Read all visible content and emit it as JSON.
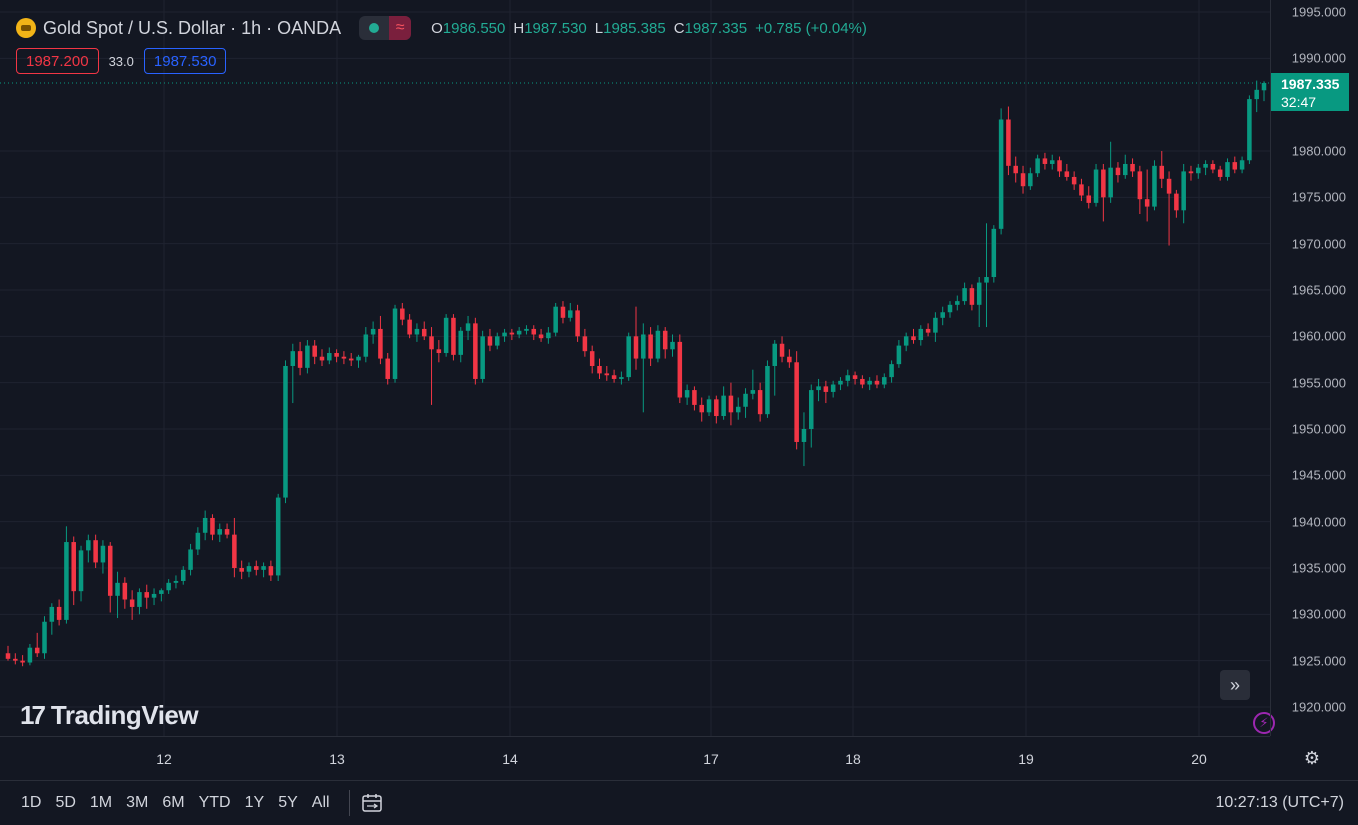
{
  "header": {
    "symbol_title": "Gold Spot / U.S. Dollar · 1h · OANDA",
    "ohlc": {
      "o_label": "O",
      "o_value": "1986.550",
      "h_label": "H",
      "h_value": "1987.530",
      "l_label": "L",
      "l_value": "1985.385",
      "c_label": "C",
      "c_value": "1987.335",
      "change": "+0.785 (+0.04%)"
    },
    "bid": "1987.200",
    "spread": "33.0",
    "ask": "1987.530"
  },
  "current_price": {
    "price": "1987.335",
    "countdown": "32:47"
  },
  "price_axis": {
    "ticks": [
      "1995.000",
      "1990.000",
      "1980.000",
      "1975.000",
      "1970.000",
      "1965.000",
      "1960.000",
      "1955.000",
      "1950.000",
      "1945.000",
      "1940.000",
      "1935.000",
      "1930.000",
      "1925.000",
      "1920.000"
    ]
  },
  "time_axis": {
    "labels": [
      "12",
      "13",
      "14",
      "17",
      "18",
      "19",
      "20"
    ]
  },
  "branding": {
    "logo_text": "TradingView"
  },
  "bottom_bar": {
    "ranges": [
      "1D",
      "5D",
      "1M",
      "3M",
      "6M",
      "YTD",
      "1Y",
      "5Y",
      "All"
    ],
    "clock": "10:27:13 (UTC+7)"
  },
  "colors": {
    "up": "#089981",
    "down": "#f23645",
    "background": "#131722",
    "grid": "#1f2330"
  },
  "icons": {
    "fast_forward": "double-chevron-right-icon",
    "lightning": "lightning-icon",
    "settings": "gear-icon",
    "calendar": "calendar-range-icon"
  },
  "chart_data": {
    "type": "candlestick",
    "symbol": "Gold Spot / U.S. Dollar",
    "interval": "1h",
    "ylim": [
      1917,
      1996
    ],
    "x_labels": [
      "12",
      "13",
      "14",
      "17",
      "18",
      "19",
      "20"
    ],
    "candles": [
      {
        "o": 1925.8,
        "h": 1926.6,
        "l": 1925.0,
        "c": 1925.2
      },
      {
        "o": 1925.2,
        "h": 1925.8,
        "l": 1924.6,
        "c": 1925.0
      },
      {
        "o": 1925.0,
        "h": 1925.6,
        "l": 1924.4,
        "c": 1924.8
      },
      {
        "o": 1924.8,
        "h": 1926.8,
        "l": 1924.5,
        "c": 1926.4
      },
      {
        "o": 1926.4,
        "h": 1928.0,
        "l": 1925.4,
        "c": 1925.8
      },
      {
        "o": 1925.8,
        "h": 1929.8,
        "l": 1925.2,
        "c": 1929.2
      },
      {
        "o": 1929.2,
        "h": 1931.2,
        "l": 1927.8,
        "c": 1930.8
      },
      {
        "o": 1930.8,
        "h": 1931.6,
        "l": 1928.8,
        "c": 1929.4
      },
      {
        "o": 1929.4,
        "h": 1939.5,
        "l": 1929.0,
        "c": 1937.8
      },
      {
        "o": 1937.8,
        "h": 1938.4,
        "l": 1931.0,
        "c": 1932.5
      },
      {
        "o": 1932.5,
        "h": 1937.4,
        "l": 1931.4,
        "c": 1936.9
      },
      {
        "o": 1936.9,
        "h": 1938.6,
        "l": 1935.6,
        "c": 1938.0
      },
      {
        "o": 1938.0,
        "h": 1938.6,
        "l": 1935.0,
        "c": 1935.6
      },
      {
        "o": 1935.6,
        "h": 1938.0,
        "l": 1934.4,
        "c": 1937.4
      },
      {
        "o": 1937.4,
        "h": 1937.8,
        "l": 1930.2,
        "c": 1932.0
      },
      {
        "o": 1932.0,
        "h": 1934.6,
        "l": 1929.6,
        "c": 1933.4
      },
      {
        "o": 1933.4,
        "h": 1934.0,
        "l": 1930.6,
        "c": 1931.6
      },
      {
        "o": 1931.6,
        "h": 1932.6,
        "l": 1929.4,
        "c": 1930.8
      },
      {
        "o": 1930.8,
        "h": 1932.8,
        "l": 1930.0,
        "c": 1932.4
      },
      {
        "o": 1932.4,
        "h": 1933.2,
        "l": 1930.6,
        "c": 1931.8
      },
      {
        "o": 1931.8,
        "h": 1932.8,
        "l": 1931.0,
        "c": 1932.2
      },
      {
        "o": 1932.2,
        "h": 1932.8,
        "l": 1931.4,
        "c": 1932.6
      },
      {
        "o": 1932.6,
        "h": 1933.8,
        "l": 1932.2,
        "c": 1933.4
      },
      {
        "o": 1933.4,
        "h": 1934.2,
        "l": 1932.8,
        "c": 1933.6
      },
      {
        "o": 1933.6,
        "h": 1935.2,
        "l": 1933.2,
        "c": 1934.8
      },
      {
        "o": 1934.8,
        "h": 1937.6,
        "l": 1934.2,
        "c": 1937.0
      },
      {
        "o": 1937.0,
        "h": 1939.4,
        "l": 1936.4,
        "c": 1938.8
      },
      {
        "o": 1938.8,
        "h": 1941.2,
        "l": 1938.0,
        "c": 1940.4
      },
      {
        "o": 1940.4,
        "h": 1940.8,
        "l": 1938.0,
        "c": 1938.6
      },
      {
        "o": 1938.6,
        "h": 1939.8,
        "l": 1937.8,
        "c": 1939.2
      },
      {
        "o": 1939.2,
        "h": 1939.8,
        "l": 1938.2,
        "c": 1938.6
      },
      {
        "o": 1938.6,
        "h": 1940.4,
        "l": 1934.0,
        "c": 1935.0
      },
      {
        "o": 1935.0,
        "h": 1935.8,
        "l": 1933.8,
        "c": 1934.6
      },
      {
        "o": 1934.6,
        "h": 1935.6,
        "l": 1934.0,
        "c": 1935.2
      },
      {
        "o": 1935.2,
        "h": 1935.8,
        "l": 1934.2,
        "c": 1934.8
      },
      {
        "o": 1934.8,
        "h": 1935.6,
        "l": 1934.0,
        "c": 1935.2
      },
      {
        "o": 1935.2,
        "h": 1935.8,
        "l": 1933.6,
        "c": 1934.2
      },
      {
        "o": 1934.2,
        "h": 1943.0,
        "l": 1933.6,
        "c": 1942.6
      },
      {
        "o": 1942.6,
        "h": 1957.4,
        "l": 1942.0,
        "c": 1956.8
      },
      {
        "o": 1956.8,
        "h": 1959.2,
        "l": 1952.8,
        "c": 1958.4
      },
      {
        "o": 1958.4,
        "h": 1959.4,
        "l": 1955.8,
        "c": 1956.6
      },
      {
        "o": 1956.6,
        "h": 1959.6,
        "l": 1956.0,
        "c": 1959.0
      },
      {
        "o": 1959.0,
        "h": 1959.6,
        "l": 1957.0,
        "c": 1957.8
      },
      {
        "o": 1957.8,
        "h": 1958.6,
        "l": 1956.8,
        "c": 1957.4
      },
      {
        "o": 1957.4,
        "h": 1958.8,
        "l": 1957.0,
        "c": 1958.2
      },
      {
        "o": 1958.2,
        "h": 1958.6,
        "l": 1957.2,
        "c": 1957.8
      },
      {
        "o": 1957.8,
        "h": 1958.4,
        "l": 1957.0,
        "c": 1957.6
      },
      {
        "o": 1957.6,
        "h": 1958.2,
        "l": 1956.8,
        "c": 1957.4
      },
      {
        "o": 1957.4,
        "h": 1958.0,
        "l": 1956.6,
        "c": 1957.8
      },
      {
        "o": 1957.8,
        "h": 1961.0,
        "l": 1957.2,
        "c": 1960.2
      },
      {
        "o": 1960.2,
        "h": 1961.6,
        "l": 1959.2,
        "c": 1960.8
      },
      {
        "o": 1960.8,
        "h": 1962.2,
        "l": 1957.0,
        "c": 1957.6
      },
      {
        "o": 1957.6,
        "h": 1958.2,
        "l": 1954.8,
        "c": 1955.4
      },
      {
        "o": 1955.4,
        "h": 1963.4,
        "l": 1955.0,
        "c": 1963.0
      },
      {
        "o": 1963.0,
        "h": 1963.6,
        "l": 1961.2,
        "c": 1961.8
      },
      {
        "o": 1961.8,
        "h": 1962.4,
        "l": 1959.8,
        "c": 1960.2
      },
      {
        "o": 1960.2,
        "h": 1961.4,
        "l": 1959.4,
        "c": 1960.8
      },
      {
        "o": 1960.8,
        "h": 1961.6,
        "l": 1959.6,
        "c": 1960.0
      },
      {
        "o": 1960.0,
        "h": 1961.0,
        "l": 1952.6,
        "c": 1958.6
      },
      {
        "o": 1958.6,
        "h": 1959.6,
        "l": 1957.2,
        "c": 1958.2
      },
      {
        "o": 1958.2,
        "h": 1962.4,
        "l": 1957.8,
        "c": 1962.0
      },
      {
        "o": 1962.0,
        "h": 1962.4,
        "l": 1957.4,
        "c": 1958.0
      },
      {
        "o": 1958.0,
        "h": 1961.0,
        "l": 1957.2,
        "c": 1960.6
      },
      {
        "o": 1960.6,
        "h": 1962.2,
        "l": 1959.6,
        "c": 1961.4
      },
      {
        "o": 1961.4,
        "h": 1962.0,
        "l": 1954.8,
        "c": 1955.4
      },
      {
        "o": 1955.4,
        "h": 1960.6,
        "l": 1955.0,
        "c": 1960.0
      },
      {
        "o": 1960.0,
        "h": 1960.8,
        "l": 1958.4,
        "c": 1959.0
      },
      {
        "o": 1959.0,
        "h": 1960.4,
        "l": 1958.6,
        "c": 1960.0
      },
      {
        "o": 1960.0,
        "h": 1960.8,
        "l": 1959.4,
        "c": 1960.4
      },
      {
        "o": 1960.4,
        "h": 1960.8,
        "l": 1959.6,
        "c": 1960.2
      },
      {
        "o": 1960.2,
        "h": 1961.0,
        "l": 1959.8,
        "c": 1960.6
      },
      {
        "o": 1960.6,
        "h": 1961.2,
        "l": 1960.2,
        "c": 1960.8
      },
      {
        "o": 1960.8,
        "h": 1961.2,
        "l": 1959.6,
        "c": 1960.2
      },
      {
        "o": 1960.2,
        "h": 1960.8,
        "l": 1959.4,
        "c": 1959.8
      },
      {
        "o": 1959.8,
        "h": 1961.0,
        "l": 1959.2,
        "c": 1960.4
      },
      {
        "o": 1960.4,
        "h": 1963.6,
        "l": 1960.0,
        "c": 1963.2
      },
      {
        "o": 1963.2,
        "h": 1963.8,
        "l": 1961.4,
        "c": 1962.0
      },
      {
        "o": 1962.0,
        "h": 1963.6,
        "l": 1961.6,
        "c": 1962.8
      },
      {
        "o": 1962.8,
        "h": 1963.4,
        "l": 1959.4,
        "c": 1960.0
      },
      {
        "o": 1960.0,
        "h": 1960.8,
        "l": 1957.8,
        "c": 1958.4
      },
      {
        "o": 1958.4,
        "h": 1959.0,
        "l": 1956.0,
        "c": 1956.8
      },
      {
        "o": 1956.8,
        "h": 1957.6,
        "l": 1955.4,
        "c": 1956.0
      },
      {
        "o": 1956.0,
        "h": 1956.8,
        "l": 1955.2,
        "c": 1955.8
      },
      {
        "o": 1955.8,
        "h": 1956.4,
        "l": 1955.0,
        "c": 1955.4
      },
      {
        "o": 1955.4,
        "h": 1956.2,
        "l": 1954.8,
        "c": 1955.6
      },
      {
        "o": 1955.6,
        "h": 1960.4,
        "l": 1955.2,
        "c": 1960.0
      },
      {
        "o": 1960.0,
        "h": 1963.2,
        "l": 1956.4,
        "c": 1957.6
      },
      {
        "o": 1957.6,
        "h": 1961.4,
        "l": 1951.8,
        "c": 1960.2
      },
      {
        "o": 1960.2,
        "h": 1961.0,
        "l": 1956.8,
        "c": 1957.6
      },
      {
        "o": 1957.6,
        "h": 1961.2,
        "l": 1957.2,
        "c": 1960.6
      },
      {
        "o": 1960.6,
        "h": 1961.0,
        "l": 1957.6,
        "c": 1958.6
      },
      {
        "o": 1958.6,
        "h": 1960.2,
        "l": 1957.8,
        "c": 1959.4
      },
      {
        "o": 1959.4,
        "h": 1960.2,
        "l": 1952.8,
        "c": 1953.4
      },
      {
        "o": 1953.4,
        "h": 1954.8,
        "l": 1952.6,
        "c": 1954.2
      },
      {
        "o": 1954.2,
        "h": 1954.6,
        "l": 1952.0,
        "c": 1952.6
      },
      {
        "o": 1952.6,
        "h": 1953.4,
        "l": 1950.8,
        "c": 1951.8
      },
      {
        "o": 1951.8,
        "h": 1953.6,
        "l": 1951.4,
        "c": 1953.2
      },
      {
        "o": 1953.2,
        "h": 1953.6,
        "l": 1950.6,
        "c": 1951.4
      },
      {
        "o": 1951.4,
        "h": 1954.6,
        "l": 1951.0,
        "c": 1953.6
      },
      {
        "o": 1953.6,
        "h": 1955.0,
        "l": 1950.4,
        "c": 1951.8
      },
      {
        "o": 1951.8,
        "h": 1953.4,
        "l": 1951.0,
        "c": 1952.4
      },
      {
        "o": 1952.4,
        "h": 1954.4,
        "l": 1951.2,
        "c": 1953.8
      },
      {
        "o": 1953.8,
        "h": 1956.4,
        "l": 1953.2,
        "c": 1954.2
      },
      {
        "o": 1954.2,
        "h": 1955.0,
        "l": 1950.8,
        "c": 1951.6
      },
      {
        "o": 1951.6,
        "h": 1957.4,
        "l": 1951.2,
        "c": 1956.8
      },
      {
        "o": 1956.8,
        "h": 1959.6,
        "l": 1953.6,
        "c": 1959.2
      },
      {
        "o": 1959.2,
        "h": 1960.0,
        "l": 1957.2,
        "c": 1957.8
      },
      {
        "o": 1957.8,
        "h": 1958.6,
        "l": 1956.6,
        "c": 1957.2
      },
      {
        "o": 1957.2,
        "h": 1958.4,
        "l": 1947.8,
        "c": 1948.6
      },
      {
        "o": 1948.6,
        "h": 1951.8,
        "l": 1946.0,
        "c": 1950.0
      },
      {
        "o": 1950.0,
        "h": 1954.8,
        "l": 1948.0,
        "c": 1954.2
      },
      {
        "o": 1954.2,
        "h": 1955.4,
        "l": 1953.0,
        "c": 1954.6
      },
      {
        "o": 1954.6,
        "h": 1955.2,
        "l": 1952.8,
        "c": 1954.0
      },
      {
        "o": 1954.0,
        "h": 1955.2,
        "l": 1953.4,
        "c": 1954.8
      },
      {
        "o": 1954.8,
        "h": 1955.6,
        "l": 1954.2,
        "c": 1955.2
      },
      {
        "o": 1955.2,
        "h": 1956.4,
        "l": 1954.6,
        "c": 1955.8
      },
      {
        "o": 1955.8,
        "h": 1956.2,
        "l": 1954.8,
        "c": 1955.4
      },
      {
        "o": 1955.4,
        "h": 1955.8,
        "l": 1954.4,
        "c": 1954.8
      },
      {
        "o": 1954.8,
        "h": 1955.6,
        "l": 1954.2,
        "c": 1955.2
      },
      {
        "o": 1955.2,
        "h": 1955.8,
        "l": 1954.4,
        "c": 1954.8
      },
      {
        "o": 1954.8,
        "h": 1956.0,
        "l": 1954.4,
        "c": 1955.6
      },
      {
        "o": 1955.6,
        "h": 1957.4,
        "l": 1955.0,
        "c": 1957.0
      },
      {
        "o": 1957.0,
        "h": 1959.6,
        "l": 1956.6,
        "c": 1959.0
      },
      {
        "o": 1959.0,
        "h": 1960.4,
        "l": 1958.4,
        "c": 1960.0
      },
      {
        "o": 1960.0,
        "h": 1960.8,
        "l": 1959.2,
        "c": 1959.6
      },
      {
        "o": 1959.6,
        "h": 1961.2,
        "l": 1959.0,
        "c": 1960.8
      },
      {
        "o": 1960.8,
        "h": 1961.4,
        "l": 1960.0,
        "c": 1960.4
      },
      {
        "o": 1960.4,
        "h": 1962.6,
        "l": 1959.4,
        "c": 1962.0
      },
      {
        "o": 1962.0,
        "h": 1963.2,
        "l": 1961.2,
        "c": 1962.6
      },
      {
        "o": 1962.6,
        "h": 1963.8,
        "l": 1962.0,
        "c": 1963.4
      },
      {
        "o": 1963.4,
        "h": 1964.4,
        "l": 1962.8,
        "c": 1963.8
      },
      {
        "o": 1963.8,
        "h": 1965.8,
        "l": 1963.4,
        "c": 1965.2
      },
      {
        "o": 1965.2,
        "h": 1965.6,
        "l": 1962.8,
        "c": 1963.4
      },
      {
        "o": 1963.4,
        "h": 1966.4,
        "l": 1961.0,
        "c": 1965.8
      },
      {
        "o": 1965.8,
        "h": 1972.2,
        "l": 1961.0,
        "c": 1966.4
      },
      {
        "o": 1966.4,
        "h": 1972.0,
        "l": 1965.8,
        "c": 1971.6
      },
      {
        "o": 1971.6,
        "h": 1984.6,
        "l": 1971.0,
        "c": 1983.4
      },
      {
        "o": 1983.4,
        "h": 1984.8,
        "l": 1977.4,
        "c": 1978.4
      },
      {
        "o": 1978.4,
        "h": 1979.4,
        "l": 1976.6,
        "c": 1977.6
      },
      {
        "o": 1977.6,
        "h": 1978.4,
        "l": 1975.4,
        "c": 1976.2
      },
      {
        "o": 1976.2,
        "h": 1978.2,
        "l": 1975.8,
        "c": 1977.6
      },
      {
        "o": 1977.6,
        "h": 1979.6,
        "l": 1977.2,
        "c": 1979.2
      },
      {
        "o": 1979.2,
        "h": 1979.8,
        "l": 1978.0,
        "c": 1978.6
      },
      {
        "o": 1978.6,
        "h": 1979.6,
        "l": 1978.0,
        "c": 1979.0
      },
      {
        "o": 1979.0,
        "h": 1979.4,
        "l": 1977.2,
        "c": 1977.8
      },
      {
        "o": 1977.8,
        "h": 1978.6,
        "l": 1976.8,
        "c": 1977.2
      },
      {
        "o": 1977.2,
        "h": 1977.8,
        "l": 1975.8,
        "c": 1976.4
      },
      {
        "o": 1976.4,
        "h": 1977.0,
        "l": 1974.6,
        "c": 1975.2
      },
      {
        "o": 1975.2,
        "h": 1976.2,
        "l": 1973.8,
        "c": 1974.4
      },
      {
        "o": 1974.4,
        "h": 1978.6,
        "l": 1974.0,
        "c": 1978.0
      },
      {
        "o": 1978.0,
        "h": 1978.6,
        "l": 1972.4,
        "c": 1975.0
      },
      {
        "o": 1975.0,
        "h": 1981.0,
        "l": 1974.4,
        "c": 1978.2
      },
      {
        "o": 1978.2,
        "h": 1978.8,
        "l": 1976.6,
        "c": 1977.4
      },
      {
        "o": 1977.4,
        "h": 1979.6,
        "l": 1977.0,
        "c": 1978.6
      },
      {
        "o": 1978.6,
        "h": 1979.2,
        "l": 1977.2,
        "c": 1977.8
      },
      {
        "o": 1977.8,
        "h": 1978.4,
        "l": 1973.2,
        "c": 1974.8
      },
      {
        "o": 1974.8,
        "h": 1978.0,
        "l": 1972.4,
        "c": 1974.0
      },
      {
        "o": 1974.0,
        "h": 1979.0,
        "l": 1973.6,
        "c": 1978.4
      },
      {
        "o": 1978.4,
        "h": 1980.0,
        "l": 1976.0,
        "c": 1977.0
      },
      {
        "o": 1977.0,
        "h": 1977.8,
        "l": 1969.8,
        "c": 1975.4
      },
      {
        "o": 1975.4,
        "h": 1975.8,
        "l": 1972.8,
        "c": 1973.6
      },
      {
        "o": 1973.6,
        "h": 1978.6,
        "l": 1972.2,
        "c": 1977.8
      },
      {
        "o": 1977.8,
        "h": 1978.4,
        "l": 1976.8,
        "c": 1977.6
      },
      {
        "o": 1977.6,
        "h": 1978.6,
        "l": 1977.0,
        "c": 1978.2
      },
      {
        "o": 1978.2,
        "h": 1979.0,
        "l": 1977.4,
        "c": 1978.6
      },
      {
        "o": 1978.6,
        "h": 1979.0,
        "l": 1977.6,
        "c": 1978.0
      },
      {
        "o": 1978.0,
        "h": 1978.4,
        "l": 1976.8,
        "c": 1977.2
      },
      {
        "o": 1977.2,
        "h": 1979.2,
        "l": 1976.8,
        "c": 1978.8
      },
      {
        "o": 1978.8,
        "h": 1979.4,
        "l": 1977.6,
        "c": 1978.0
      },
      {
        "o": 1978.0,
        "h": 1979.4,
        "l": 1977.6,
        "c": 1979.0
      },
      {
        "o": 1979.0,
        "h": 1986.0,
        "l": 1978.6,
        "c": 1985.6
      },
      {
        "o": 1985.6,
        "h": 1987.6,
        "l": 1984.2,
        "c": 1986.6
      },
      {
        "o": 1986.55,
        "h": 1987.53,
        "l": 1985.385,
        "c": 1987.335
      }
    ]
  }
}
